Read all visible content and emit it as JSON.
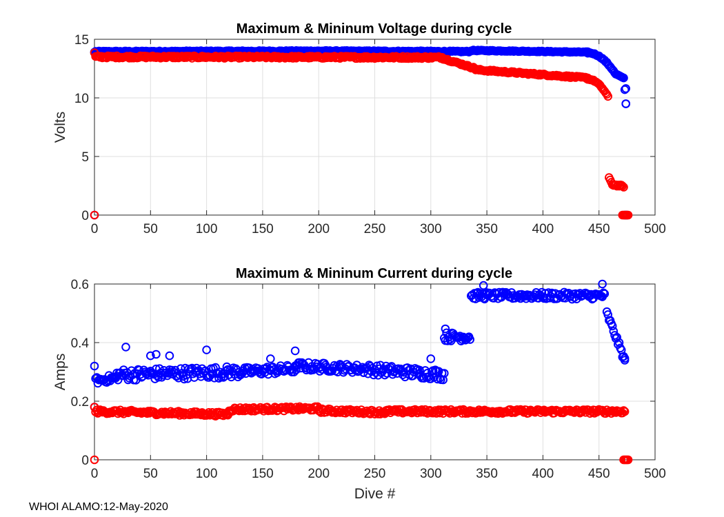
{
  "footer": "WHOI ALAMO:12-May-2020",
  "colors": {
    "max_series": "#0000ff",
    "min_series": "#ff0000"
  },
  "chart_data": [
    {
      "type": "scatter",
      "title": "Maximum & Mininum Voltage during cycle",
      "xlabel": "",
      "ylabel": "Volts",
      "xlim": [
        0,
        500
      ],
      "ylim": [
        0,
        15
      ],
      "xticks": [
        0,
        50,
        100,
        150,
        200,
        250,
        300,
        350,
        400,
        450,
        500
      ],
      "yticks": [
        0,
        5,
        10,
        15
      ],
      "grid": true,
      "marker": "circle-open",
      "series": [
        {
          "name": "Maximum",
          "color_key": "max_series",
          "segments": [
            {
              "x": [
                0,
                0
              ],
              "y": [
                0.0,
                13.9
              ]
            },
            {
              "x": [
                1,
                200
              ],
              "y": [
                13.95,
                14.0
              ],
              "noise": 0.05
            },
            {
              "x": [
                200,
                335
              ],
              "y": [
                14.0,
                13.95
              ],
              "noise": 0.05
            },
            {
              "x": [
                336,
                440
              ],
              "y": [
                14.05,
                13.9
              ],
              "noise": 0.04
            },
            {
              "x": [
                440,
                465
              ],
              "y": [
                13.85,
                12.0
              ],
              "curve": 2.0,
              "noise": 0.05
            },
            {
              "x": [
                466,
                472
              ],
              "y": [
                12.0,
                11.7
              ]
            },
            {
              "x": [
                473,
                474
              ],
              "y": [
                10.7,
                10.8
              ]
            },
            {
              "x": [
                474,
                474
              ],
              "y": [
                9.5,
                9.5
              ]
            },
            {
              "x": [
                473,
                475
              ],
              "y": [
                0.0,
                0.0
              ]
            }
          ]
        },
        {
          "name": "Minimum",
          "color_key": "min_series",
          "segments": [
            {
              "x": [
                0,
                0
              ],
              "y": [
                0.0,
                13.85
              ]
            },
            {
              "x": [
                1,
                310
              ],
              "y": [
                13.5,
                13.45
              ],
              "noise": 0.1
            },
            {
              "x": [
                310,
                340
              ],
              "y": [
                13.4,
                12.5
              ],
              "noise": 0.08
            },
            {
              "x": [
                340,
                440
              ],
              "y": [
                12.4,
                11.7
              ],
              "noise": 0.08
            },
            {
              "x": [
                440,
                458
              ],
              "y": [
                11.6,
                10.1
              ],
              "curve": 2.0,
              "noise": 0.05
            },
            {
              "x": [
                459,
                462
              ],
              "y": [
                3.2,
                2.6
              ]
            },
            {
              "x": [
                462,
                472
              ],
              "y": [
                2.6,
                2.45
              ],
              "noise": 0.08
            },
            {
              "x": [
                471,
                476
              ],
              "y": [
                0.0,
                0.0
              ]
            }
          ]
        }
      ]
    },
    {
      "type": "scatter",
      "title": "Maximum & Mininum Current during cycle",
      "xlabel": "Dive #",
      "ylabel": "Amps",
      "xlim": [
        0,
        500
      ],
      "ylim": [
        0,
        0.6
      ],
      "xticks": [
        0,
        50,
        100,
        150,
        200,
        250,
        300,
        350,
        400,
        450,
        500
      ],
      "yticks": [
        0,
        0.2,
        0.4,
        0.6
      ],
      "grid": true,
      "marker": "circle-open",
      "series": [
        {
          "name": "Maximum",
          "color_key": "max_series",
          "segments": [
            {
              "x": [
                0,
                0
              ],
              "y": [
                0.18,
                0.32
              ]
            },
            {
              "x": [
                1,
                20
              ],
              "y": [
                0.27,
                0.28
              ],
              "noise": 0.012
            },
            {
              "x": [
                20,
                130
              ],
              "y": [
                0.29,
                0.3
              ],
              "noise": 0.02
            },
            {
              "x": [
                130,
                180
              ],
              "y": [
                0.3,
                0.31
              ],
              "noise": 0.015
            },
            {
              "x": [
                180,
                240
              ],
              "y": [
                0.32,
                0.31
              ],
              "noise": 0.015
            },
            {
              "x": [
                240,
                312
              ],
              "y": [
                0.31,
                0.29
              ],
              "noise": 0.018
            },
            {
              "x": [
                312,
                335
              ],
              "y": [
                0.42,
                0.42
              ],
              "noise": 0.015
            },
            {
              "x": [
                336,
                455
              ],
              "y": [
                0.56,
                0.56
              ],
              "noise": 0.012
            },
            {
              "x": [
                457,
                473
              ],
              "y": [
                0.5,
                0.34
              ],
              "noise": 0.01
            }
          ],
          "extra_points": [
            {
              "x": 28,
              "y": 0.385
            },
            {
              "x": 50,
              "y": 0.355
            },
            {
              "x": 55,
              "y": 0.36
            },
            {
              "x": 67,
              "y": 0.355
            },
            {
              "x": 100,
              "y": 0.375
            },
            {
              "x": 157,
              "y": 0.345
            },
            {
              "x": 179,
              "y": 0.372
            },
            {
              "x": 300,
              "y": 0.345
            },
            {
              "x": 313,
              "y": 0.447
            },
            {
              "x": 347,
              "y": 0.595
            },
            {
              "x": 453,
              "y": 0.6
            },
            {
              "x": 473,
              "y": 0.34
            }
          ]
        },
        {
          "name": "Minimum",
          "color_key": "min_series",
          "segments": [
            {
              "x": [
                0,
                0
              ],
              "y": [
                0.0,
                0.18
              ]
            },
            {
              "x": [
                1,
                120
              ],
              "y": [
                0.165,
                0.155
              ],
              "noise": 0.007
            },
            {
              "x": [
                120,
                200
              ],
              "y": [
                0.172,
                0.175
              ],
              "noise": 0.007
            },
            {
              "x": [
                200,
                260
              ],
              "y": [
                0.168,
                0.162
              ],
              "noise": 0.007
            },
            {
              "x": [
                260,
                473
              ],
              "y": [
                0.165,
                0.165
              ],
              "noise": 0.007
            },
            {
              "x": [
                472,
                476
              ],
              "y": [
                0.0,
                0.0
              ]
            }
          ]
        }
      ]
    }
  ]
}
